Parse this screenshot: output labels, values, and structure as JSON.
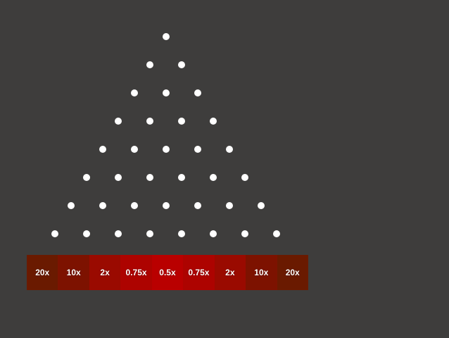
{
  "board": {
    "rows": 8,
    "first_row_pegs": 1,
    "peg_color": "#ffffff",
    "background_color": "#3e3d3c"
  },
  "slots": [
    {
      "label": "20x",
      "color": "#6a1a00"
    },
    {
      "label": "10x",
      "color": "#7d1200"
    },
    {
      "label": "2x",
      "color": "#9a0a00"
    },
    {
      "label": "0.75x",
      "color": "#ad0300"
    },
    {
      "label": "0.5x",
      "color": "#b90000"
    },
    {
      "label": "0.75x",
      "color": "#ad0300"
    },
    {
      "label": "2x",
      "color": "#9a0a00"
    },
    {
      "label": "10x",
      "color": "#7d1200"
    },
    {
      "label": "20x",
      "color": "#6a1a00"
    }
  ]
}
